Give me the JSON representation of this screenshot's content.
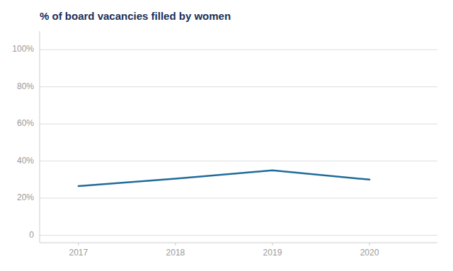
{
  "chart_data": {
    "type": "line",
    "title": "% of board vacancies filled by women",
    "x": [
      2017,
      2018,
      2019,
      2020
    ],
    "values": [
      0.265,
      0.305,
      0.35,
      0.3
    ],
    "color": "#1F6B9A",
    "xlim": [
      2016.6,
      2020.7
    ],
    "ylim": [
      -0.04,
      1.1
    ],
    "xticks": [
      2017,
      2018,
      2019,
      2020
    ],
    "yticks": [
      0,
      {
        "value": 0.2,
        "label": "20%"
      },
      {
        "value": 0.4,
        "label": "40%"
      },
      {
        "value": 0.6,
        "label": "60%"
      },
      {
        "value": 0.8,
        "label": "80%"
      },
      {
        "value": 1.0,
        "label": "100%"
      }
    ],
    "grid": true
  }
}
